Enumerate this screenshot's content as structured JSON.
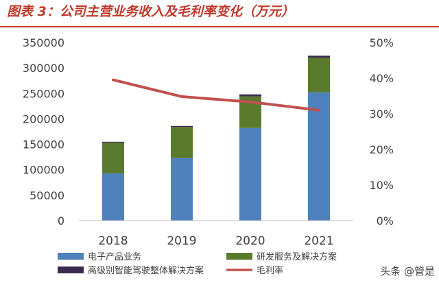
{
  "page": {
    "title": "图表 3：公司主营业务收入及毛利率变化（万元）",
    "watermark": "头条 @管是"
  },
  "chart_data": {
    "type": "bar",
    "stacked": true,
    "title": "图表 3：公司主营业务收入及毛利率变化（万元）",
    "categories": [
      "2018",
      "2019",
      "2020",
      "2021"
    ],
    "y_left": {
      "range": [
        0,
        350000
      ],
      "ticks": [
        0,
        50000,
        100000,
        150000,
        200000,
        250000,
        300000,
        350000
      ],
      "tick_labels": [
        "0",
        "50000",
        "100000",
        "150000",
        "200000",
        "250000",
        "300000",
        "350000"
      ]
    },
    "y_right": {
      "range": [
        0,
        0.5
      ],
      "ticks": [
        0,
        0.1,
        0.2,
        0.3,
        0.4,
        0.5
      ],
      "tick_labels": [
        "0%",
        "10%",
        "20%",
        "30%",
        "40%",
        "50%"
      ]
    },
    "series": [
      {
        "name": "电子产品业务",
        "type": "bar",
        "axis": "left",
        "color": "#4f81bd",
        "values": [
          93000,
          123000,
          182000,
          252000
        ]
      },
      {
        "name": "研发服务及解决方案",
        "type": "bar",
        "axis": "left",
        "color": "#5a7a2e",
        "values": [
          60000,
          61000,
          62000,
          68000
        ]
      },
      {
        "name": "高级别智能驾驶整体解决方案",
        "type": "bar",
        "axis": "left",
        "color": "#3b2a50",
        "values": [
          2000,
          2000,
          4000,
          4000
        ]
      },
      {
        "name": "毛利率",
        "type": "line",
        "axis": "right",
        "color": "#c0504d",
        "values": [
          0.395,
          0.348,
          0.333,
          0.31
        ]
      }
    ],
    "legend": {
      "placement": "bottom",
      "columns": 2
    },
    "grid": false
  }
}
